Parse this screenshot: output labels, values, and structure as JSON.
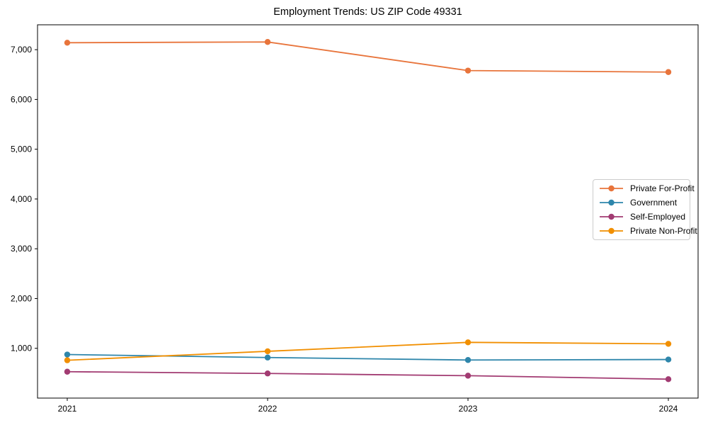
{
  "chart_data": {
    "type": "line",
    "title": "Employment Trends: US ZIP Code 49331",
    "xlabel": "",
    "ylabel": "",
    "categories": [
      "2021",
      "2022",
      "2023",
      "2024"
    ],
    "series": [
      {
        "name": "Private For-Profit",
        "color": "#E8743B",
        "values": [
          7140,
          7155,
          6580,
          6550
        ]
      },
      {
        "name": "Government",
        "color": "#2E86AB",
        "values": [
          875,
          815,
          765,
          775
        ]
      },
      {
        "name": "Self-Employed",
        "color": "#A23B72",
        "values": [
          530,
          495,
          450,
          380
        ]
      },
      {
        "name": "Private Non-Profit",
        "color": "#F18F01",
        "values": [
          760,
          940,
          1120,
          1090
        ]
      }
    ],
    "ylim": [
      0,
      7500
    ],
    "yticks": [
      1000,
      2000,
      3000,
      4000,
      5000,
      6000,
      7000
    ],
    "ytick_labels": [
      "1,000",
      "2,000",
      "3,000",
      "4,000",
      "5,000",
      "6,000",
      "7,000"
    ],
    "grid": false,
    "legend_position": "center-right",
    "marker": "circle",
    "frame_color": "#000000"
  }
}
